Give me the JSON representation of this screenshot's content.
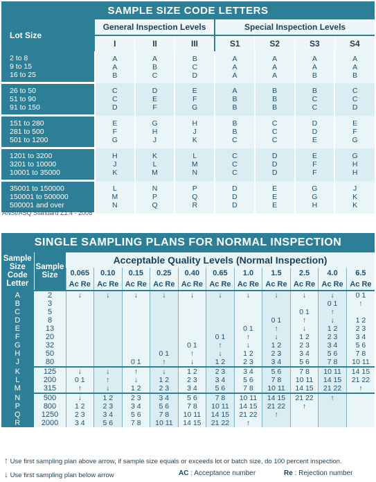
{
  "code_letters": {
    "title": "SAMPLE SIZE CODE LETTERS",
    "lot_size_header": "Lot Size",
    "general_header": "General Inspection Levels",
    "special_header": "Special Inspection Levels",
    "columns": [
      "I",
      "II",
      "III",
      "S1",
      "S2",
      "S3",
      "S4"
    ],
    "groups": [
      {
        "lots": [
          "2 to 8",
          "9 to 15",
          "16 to 25"
        ],
        "cols": [
          [
            "A",
            "A",
            "B"
          ],
          [
            "A",
            "B",
            "C"
          ],
          [
            "B",
            "C",
            "D"
          ],
          [
            "A",
            "A",
            "A"
          ],
          [
            "A",
            "A",
            "A"
          ],
          [
            "A",
            "A",
            "B"
          ],
          [
            "A",
            "A",
            "B"
          ]
        ]
      },
      {
        "lots": [
          "26 to 50",
          "51 to 90",
          "91 to 150"
        ],
        "cols": [
          [
            "C",
            "C",
            "D"
          ],
          [
            "D",
            "E",
            "F"
          ],
          [
            "E",
            "F",
            "G"
          ],
          [
            "A",
            "B",
            "B"
          ],
          [
            "B",
            "B",
            "B"
          ],
          [
            "B",
            "C",
            "C"
          ],
          [
            "C",
            "C",
            "D"
          ]
        ]
      },
      {
        "lots": [
          "151 to 280",
          "281 to 500",
          "501 to 1200"
        ],
        "cols": [
          [
            "E",
            "F",
            "G"
          ],
          [
            "G",
            "H",
            "J"
          ],
          [
            "H",
            "J",
            "K"
          ],
          [
            "B",
            "B",
            "C"
          ],
          [
            "C",
            "C",
            "C"
          ],
          [
            "D",
            "D",
            "E"
          ],
          [
            "E",
            "F",
            "G"
          ]
        ]
      },
      {
        "lots": [
          "1201 to 3200",
          "3201 to 10000",
          "10001 to 35000"
        ],
        "cols": [
          [
            "H",
            "J",
            "K"
          ],
          [
            "K",
            "L",
            "M"
          ],
          [
            "L",
            "M",
            "N"
          ],
          [
            "C",
            "C",
            "C"
          ],
          [
            "D",
            "D",
            "D"
          ],
          [
            "E",
            "F",
            "F"
          ],
          [
            "G",
            "H",
            "H"
          ]
        ]
      },
      {
        "lots": [
          "35001 to 150000",
          "150001 to 500000",
          "500001 and over"
        ],
        "cols": [
          [
            "L",
            "M",
            "N"
          ],
          [
            "N",
            "P",
            "Q"
          ],
          [
            "P",
            "Q",
            "R"
          ],
          [
            "D",
            "D",
            "D"
          ],
          [
            "E",
            "E",
            "E"
          ],
          [
            "G",
            "G",
            "H"
          ],
          [
            "J",
            "K",
            "K"
          ]
        ]
      }
    ],
    "footnote": "ANSI/ASQ Standard Z1.4 - 2008"
  },
  "sampling": {
    "title": "SINGLE SAMPLING PLANS FOR NORMAL INSPECTION",
    "code_header": "Sample Size Code Letter",
    "size_header": "Sample Size",
    "aql_header": "Acceptable Quality Levels (Normal Inspection)",
    "aql_values": [
      "0.065",
      "0.10",
      "0.15",
      "0.25",
      "0.40",
      "0.65",
      "1.0",
      "1.5",
      "2.5",
      "4.0",
      "6.5"
    ],
    "ac_label": "Ac",
    "re_label": "Re",
    "blocks": [
      {
        "codes": [
          "A",
          "B",
          "C",
          "D",
          "E",
          "F",
          "G",
          "H",
          "J"
        ],
        "sizes": [
          "2",
          "3",
          "5",
          "8",
          "13",
          "20",
          "32",
          "50",
          "80"
        ],
        "cells": [
          [
            "↓",
            "↓",
            "↓",
            "↓",
            "↓",
            "↓",
            "↓",
            "↓",
            "↓",
            "↓",
            "0 1"
          ],
          [
            "",
            "",
            "",
            "",
            "",
            "",
            "",
            "",
            "",
            "0 1",
            "↑"
          ],
          [
            "",
            "",
            "",
            "",
            "",
            "",
            "",
            "",
            "0 1",
            "↑",
            ""
          ],
          [
            "",
            "",
            "",
            "",
            "",
            "",
            "",
            "0 1",
            "↑",
            "↓",
            "1 2"
          ],
          [
            "",
            "",
            "",
            "",
            "",
            "",
            "0 1",
            "↑",
            "↓",
            "1 2",
            "2 3"
          ],
          [
            "",
            "",
            "",
            "",
            "",
            "0 1",
            "↑",
            "↓",
            "1 2",
            "2 3",
            "3 4"
          ],
          [
            "",
            "",
            "",
            "",
            "0 1",
            "↑",
            "↓",
            "1 2",
            "2 3",
            "3 4",
            "5 6"
          ],
          [
            "",
            "",
            "",
            "0 1",
            "↑",
            "↓",
            "1 2",
            "2 3",
            "3 4",
            "5 6",
            "7 8"
          ],
          [
            "",
            "",
            "0 1",
            "↑",
            "↓",
            "1 2",
            "2 3",
            "3 4",
            "5 6",
            "7 8",
            "10 11"
          ]
        ]
      },
      {
        "codes": [
          "K",
          "L",
          "M"
        ],
        "sizes": [
          "125",
          "200",
          "315"
        ],
        "cells": [
          [
            "↓",
            "↓",
            "↑",
            "↓",
            "1 2",
            "2 3",
            "3 4",
            "5 6",
            "7 8",
            "10 11",
            "14 15"
          ],
          [
            "0 1",
            "↑",
            "↓",
            "1 2",
            "2 3",
            "3 4",
            "5 6",
            "7 8",
            "10 11",
            "14 15",
            "21 22"
          ],
          [
            "↑",
            "↓",
            "1 2",
            "2 3",
            "3 4",
            "5 6",
            "7 8",
            "10 11",
            "14 15",
            "21 22",
            "↑"
          ]
        ]
      },
      {
        "codes": [
          "N",
          "P",
          "Q",
          "R"
        ],
        "sizes": [
          "500",
          "800",
          "1250",
          "2000"
        ],
        "cells": [
          [
            "↓",
            "1 2",
            "2 3",
            "3 4",
            "5 6",
            "7 8",
            "10 11",
            "14 15",
            "21 22",
            "↑",
            ""
          ],
          [
            "1 2",
            "2 3",
            "3 4",
            "5 6",
            "7 8",
            "10 11",
            "14 15",
            "21 22",
            "↑",
            "",
            ""
          ],
          [
            "2 3",
            "3 4",
            "5 6",
            "7 8",
            "10 11",
            "14 15",
            "21 22",
            "↑",
            "",
            "",
            ""
          ],
          [
            "3 4",
            "5 6",
            "7 8",
            "10 11",
            "14 15",
            "21 22",
            "↑",
            "",
            "",
            "",
            ""
          ]
        ]
      }
    ]
  },
  "legend": {
    "up": "Use first sampling plan above arrow, if sample size equals or exceeds lot or batch size, do 100 percent inspection.",
    "down": "Use first sampling plan below arrow",
    "ac_abbr": "AC",
    "ac_text": ": Acceptance number",
    "re_abbr": "Re",
    "re_text": ": Rejection number",
    "up_icon": "up-arrow-icon",
    "down_icon": "down-arrow-icon"
  }
}
